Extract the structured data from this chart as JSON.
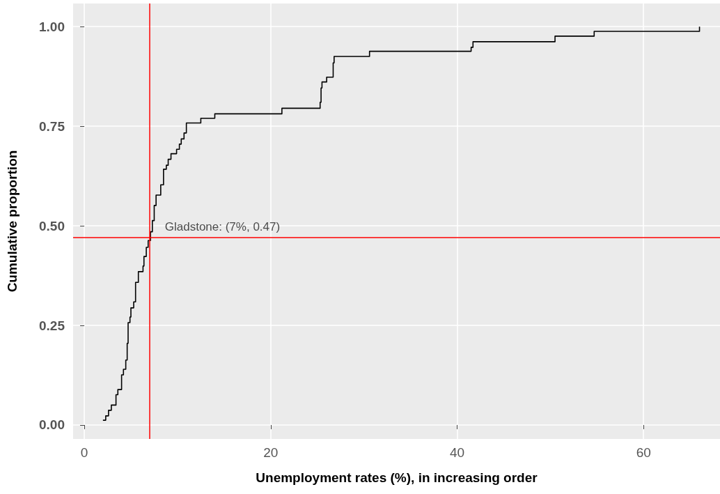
{
  "chart_data": {
    "type": "step",
    "xlabel": "Unemployment rates (%), in increasing order",
    "ylabel": "Cumulative proportion",
    "annotations": [
      {
        "text": "Gladstone: (7%, 0.47)",
        "x": 7,
        "y": 0.47
      }
    ],
    "x": [
      2.0,
      2.3,
      2.6,
      2.9,
      3.4,
      3.6,
      4.0,
      4.2,
      4.45,
      4.6,
      4.7,
      4.9,
      5.0,
      5.3,
      5.5,
      5.8,
      6.3,
      6.4,
      6.65,
      6.85,
      7.1,
      7.3,
      7.5,
      7.7,
      8.2,
      8.5,
      8.8,
      9.0,
      9.3,
      9.9,
      10.2,
      10.4,
      10.7,
      10.95,
      12.5,
      14.0,
      21.2,
      25.3,
      25.4,
      25.5,
      26.0,
      26.7,
      26.8,
      30.6,
      41.5,
      41.7,
      50.5,
      54.7,
      66.0
    ],
    "series": [
      {
        "color": "#000000",
        "values": [
          0.012,
          0.023,
          0.037,
          0.05,
          0.076,
          0.089,
          0.126,
          0.14,
          0.163,
          0.205,
          0.257,
          0.271,
          0.294,
          0.309,
          0.358,
          0.385,
          0.399,
          0.423,
          0.446,
          0.463,
          0.485,
          0.513,
          0.551,
          0.577,
          0.603,
          0.642,
          0.652,
          0.667,
          0.681,
          0.692,
          0.705,
          0.718,
          0.733,
          0.758,
          0.77,
          0.781,
          0.795,
          0.81,
          0.846,
          0.861,
          0.873,
          0.909,
          0.925,
          0.938,
          0.948,
          0.962,
          0.976,
          0.988,
          1.0
        ]
      }
    ],
    "xlim": [
      -1.2,
      68.2
    ],
    "xticks": [
      0,
      20,
      40,
      60
    ],
    "ylim": [
      -0.035,
      1.058
    ],
    "yticks": [
      {
        "value": 0,
        "label": "0.00"
      },
      {
        "value": 0.25,
        "label": "0.25"
      },
      {
        "value": 0.5,
        "label": "0.50"
      },
      {
        "value": 0.75,
        "label": "0.75"
      },
      {
        "value": 1,
        "label": "1.00"
      }
    ],
    "ref_lines": [
      {
        "axis": "x",
        "value": 7,
        "color": "#ff0000"
      },
      {
        "axis": "y",
        "value": 0.47,
        "color": "#ff0000"
      }
    ],
    "grid": true,
    "marker": "none",
    "line_style": "solid"
  }
}
